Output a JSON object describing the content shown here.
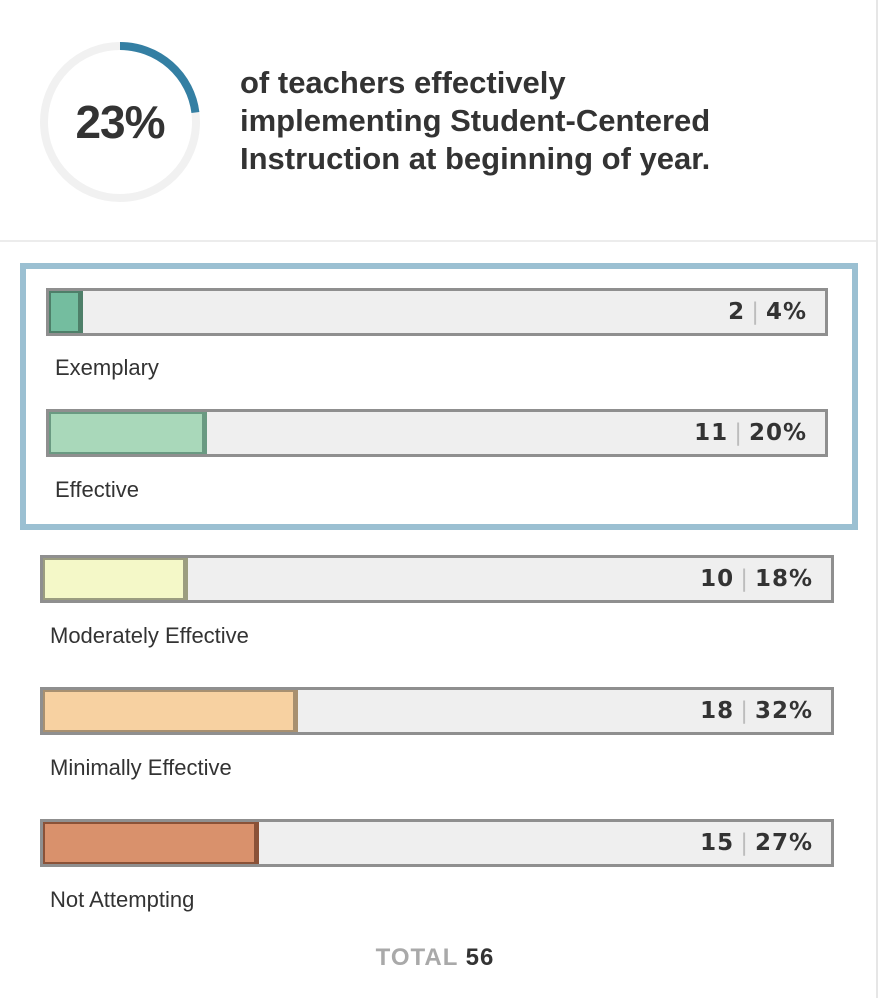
{
  "summary": {
    "percent_text": "23%",
    "percent_value": 23,
    "headline_lines": [
      "of teachers effectively",
      "implementing Student-Centered",
      "Instruction at beginning of year."
    ],
    "ring_color": "#347fa3",
    "ring_track_color": "#f1f1f1"
  },
  "chart_data": {
    "type": "bar",
    "orientation": "horizontal",
    "categories": [
      "Exemplary",
      "Effective",
      "Moderately Effective",
      "Minimally Effective",
      "Not Attempting"
    ],
    "values": [
      2,
      11,
      10,
      18,
      15
    ],
    "percents": [
      4,
      20,
      18,
      32,
      27
    ],
    "count_labels": [
      "2",
      "11",
      "10",
      "18",
      "15"
    ],
    "percent_labels": [
      "4%",
      "20%",
      "18%",
      "32%",
      "27%"
    ],
    "colors": [
      "#74bd9f",
      "#a9d8ba",
      "#f4f8c8",
      "#f7d1a1",
      "#d9916c"
    ],
    "border_colors": [
      "#4e7f69",
      "#6a9a82",
      "#9b9d80",
      "#a89070",
      "#8a5238"
    ],
    "highlighted": [
      "Exemplary",
      "Effective"
    ],
    "highlight_color": "#9bc0d2",
    "total_label": "TOTAL",
    "total_value": "56"
  }
}
